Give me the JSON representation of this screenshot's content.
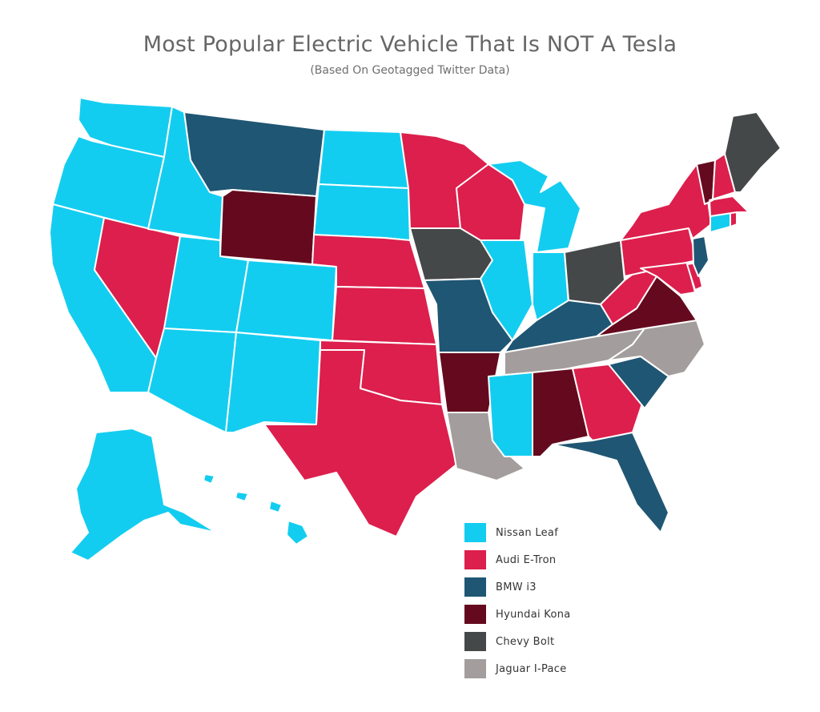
{
  "title": "Most Popular Electric Vehicle That Is NOT A Tesla",
  "subtitle": "(Based On Geotagged Twitter Data)",
  "legend": [
    {
      "label": "Nissan Leaf",
      "color": "#13cdf0"
    },
    {
      "label": "Audi E-Tron",
      "color": "#dc1f4c"
    },
    {
      "label": "BMW i3",
      "color": "#1f5673"
    },
    {
      "label": "Hyundai Kona",
      "color": "#650a1e"
    },
    {
      "label": "Chevy Bolt",
      "color": "#454849"
    },
    {
      "label": "Jaguar I-Pace",
      "color": "#a39d9d"
    }
  ],
  "states": {
    "WA": "Nissan Leaf",
    "OR": "Nissan Leaf",
    "CA": "Nissan Leaf",
    "NV": "Audi E-Tron",
    "ID": "Nissan Leaf",
    "MT": "BMW i3",
    "WY": "Hyundai Kona",
    "UT": "Nissan Leaf",
    "AZ": "Nissan Leaf",
    "CO": "Nissan Leaf",
    "NM": "Nissan Leaf",
    "ND": "Nissan Leaf",
    "SD": "Nissan Leaf",
    "NE": "Audi E-Tron",
    "KS": "Audi E-Tron",
    "OK": "Audi E-Tron",
    "TX": "Audi E-Tron",
    "MN": "Audi E-Tron",
    "IA": "Chevy Bolt",
    "MO": "BMW i3",
    "AR": "Hyundai Kona",
    "LA": "Jaguar I-Pace",
    "WI": "Audi E-Tron",
    "IL": "Nissan Leaf",
    "MI": "Nissan Leaf",
    "IN": "Nissan Leaf",
    "OH": "Chevy Bolt",
    "KY": "BMW i3",
    "TN": "Jaguar I-Pace",
    "MS": "Nissan Leaf",
    "AL": "Hyundai Kona",
    "GA": "Audi E-Tron",
    "FL": "BMW i3",
    "SC": "BMW i3",
    "NC": "Jaguar I-Pace",
    "VA": "Hyundai Kona",
    "WV": "Audi E-Tron",
    "MD": "Audi E-Tron",
    "DE": "Audi E-Tron",
    "PA": "Audi E-Tron",
    "NJ": "BMW i3",
    "NY": "Audi E-Tron",
    "CT": "Nissan Leaf",
    "RI": "Audi E-Tron",
    "MA": "Audi E-Tron",
    "VT": "Hyundai Kona",
    "NH": "Audi E-Tron",
    "ME": "Chevy Bolt",
    "AK": "Nissan Leaf",
    "HI": "Nissan Leaf"
  }
}
